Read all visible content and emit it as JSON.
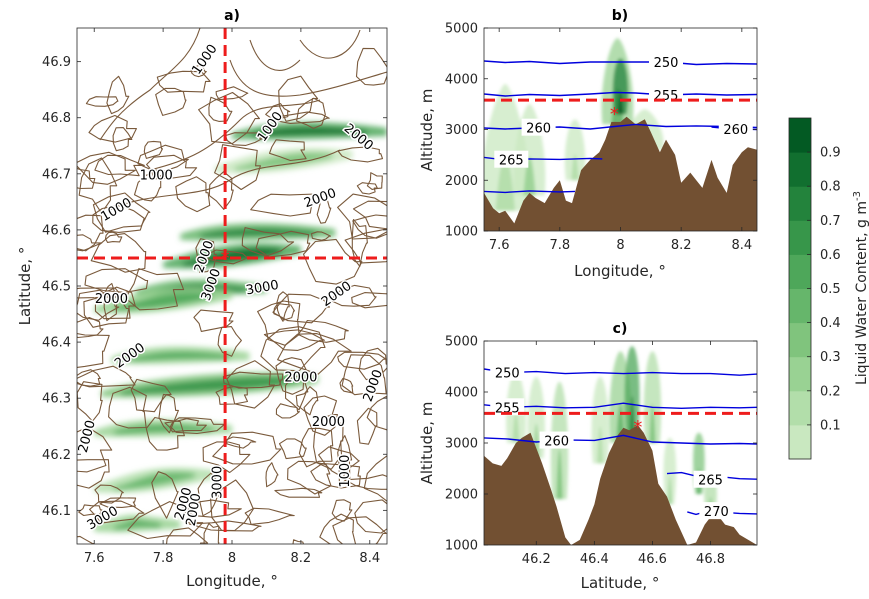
{
  "colors": {
    "terrain_contour": "#7a5a3c",
    "terrain_fill": "#725032",
    "isotherm": "#0000dd",
    "marker_line": "#ee1c1c",
    "green_scale": [
      "#c9e8c0",
      "#b2deaa",
      "#99d293",
      "#80c47d",
      "#66b66b",
      "#4ea75a",
      "#37964a",
      "#23833c",
      "#116f2f",
      "#035a23"
    ]
  },
  "chart_data": [
    {
      "id": "a",
      "type": "contour-map",
      "title": "a)",
      "xlabel": "Longitude, °",
      "ylabel": "Latitude, °",
      "xlim": [
        7.55,
        8.45
      ],
      "ylim": [
        46.04,
        46.96
      ],
      "xticks": [
        7.6,
        7.8,
        8,
        8.2,
        8.4
      ],
      "yticks": [
        46.1,
        46.2,
        46.3,
        46.4,
        46.5,
        46.6,
        46.7,
        46.8,
        46.9
      ],
      "marker_lines": {
        "longitude": 7.98,
        "latitude": 46.55
      },
      "terrain_contour_labels": [
        {
          "text": "1000",
          "x": 7.93,
          "y": 46.9,
          "rot": -55
        },
        {
          "text": "1000",
          "x": 7.78,
          "y": 46.69,
          "rot": 0
        },
        {
          "text": "1000",
          "x": 7.67,
          "y": 46.63,
          "rot": -30
        },
        {
          "text": "1000",
          "x": 8.12,
          "y": 46.78,
          "rot": -55
        },
        {
          "text": "2000",
          "x": 8.36,
          "y": 46.76,
          "rot": 40
        },
        {
          "text": "2000",
          "x": 8.26,
          "y": 46.65,
          "rot": -20
        },
        {
          "text": "2000",
          "x": 7.65,
          "y": 46.47,
          "rot": 0
        },
        {
          "text": "2000",
          "x": 7.71,
          "y": 46.37,
          "rot": -35
        },
        {
          "text": "2000",
          "x": 7.59,
          "y": 46.23,
          "rot": -75
        },
        {
          "text": "2000",
          "x": 8.2,
          "y": 46.33,
          "rot": 0
        },
        {
          "text": "2000",
          "x": 8.28,
          "y": 46.25,
          "rot": 0
        },
        {
          "text": "2000",
          "x": 8.31,
          "y": 46.48,
          "rot": -35
        },
        {
          "text": "2000",
          "x": 8.42,
          "y": 46.32,
          "rot": -70
        },
        {
          "text": "2000",
          "x": 7.87,
          "y": 46.11,
          "rot": -75
        },
        {
          "text": "2000",
          "x": 7.9,
          "y": 46.1,
          "rot": -80
        },
        {
          "text": "2000",
          "x": 7.93,
          "y": 46.55,
          "rot": -70
        },
        {
          "text": "3000",
          "x": 7.95,
          "y": 46.5,
          "rot": -70
        },
        {
          "text": "3000",
          "x": 8.09,
          "y": 46.49,
          "rot": -10
        },
        {
          "text": "3000",
          "x": 7.63,
          "y": 46.08,
          "rot": -30
        },
        {
          "text": "3000",
          "x": 7.97,
          "y": 46.15,
          "rot": -90
        },
        {
          "text": "1000",
          "x": 8.34,
          "y": 46.17,
          "rot": -90
        }
      ],
      "lwc_bands": [
        {
          "lat": 46.78,
          "lon_from": 8.0,
          "lon_to": 8.45,
          "level": 8
        },
        {
          "lat": 46.72,
          "lon_from": 7.95,
          "lon_to": 8.35,
          "level": 3
        },
        {
          "lat": 46.6,
          "lon_from": 7.85,
          "lon_to": 8.3,
          "level": 7
        },
        {
          "lat": 46.55,
          "lon_from": 7.8,
          "lon_to": 8.2,
          "level": 8
        },
        {
          "lat": 46.5,
          "lon_from": 7.72,
          "lon_to": 8.1,
          "level": 7
        },
        {
          "lat": 46.47,
          "lon_from": 7.6,
          "lon_to": 8.0,
          "level": 5
        },
        {
          "lat": 46.38,
          "lon_from": 7.65,
          "lon_to": 8.05,
          "level": 5
        },
        {
          "lat": 46.32,
          "lon_from": 7.62,
          "lon_to": 8.25,
          "level": 6
        },
        {
          "lat": 46.25,
          "lon_from": 7.6,
          "lon_to": 8.0,
          "level": 5
        },
        {
          "lat": 46.15,
          "lon_from": 7.6,
          "lon_to": 7.95,
          "level": 4
        },
        {
          "lat": 46.08,
          "lon_from": 7.6,
          "lon_to": 7.85,
          "level": 5
        }
      ]
    },
    {
      "id": "b",
      "type": "cross-section",
      "title": "b)",
      "xlabel": "Longitude, °",
      "ylabel": "Altitude, m",
      "xlim": [
        7.55,
        8.45
      ],
      "ylim": [
        1000,
        5000
      ],
      "xticks": [
        7.6,
        7.8,
        8,
        8.2,
        8.4
      ],
      "yticks": [
        1000,
        2000,
        3000,
        4000,
        5000
      ],
      "marker_altitude": 3580,
      "star": {
        "x": 7.98,
        "y": 3330
      },
      "terrain": {
        "x": [
          7.55,
          7.58,
          7.6,
          7.62,
          7.65,
          7.68,
          7.7,
          7.72,
          7.75,
          7.78,
          7.8,
          7.82,
          7.84,
          7.87,
          7.9,
          7.93,
          7.95,
          7.97,
          8.0,
          8.02,
          8.05,
          8.08,
          8.1,
          8.13,
          8.15,
          8.18,
          8.2,
          8.23,
          8.25,
          8.27,
          8.3,
          8.32,
          8.35,
          8.37,
          8.4,
          8.42,
          8.45
        ],
        "y": [
          1750,
          1450,
          1350,
          1400,
          1150,
          1600,
          1750,
          1650,
          1550,
          1850,
          2000,
          1600,
          1550,
          2200,
          2400,
          2550,
          2800,
          3150,
          3150,
          3250,
          3100,
          3200,
          2950,
          2550,
          2800,
          2500,
          1950,
          2150,
          2000,
          1850,
          2400,
          2050,
          1750,
          2300,
          2550,
          2650,
          2600
        ]
      },
      "isotherms": [
        {
          "label": "250",
          "x": [
            7.55,
            7.62,
            7.7,
            7.8,
            7.9,
            7.98,
            8.05,
            8.15,
            8.25,
            8.35,
            8.45
          ],
          "y": [
            4350,
            4320,
            4340,
            4300,
            4330,
            4330,
            4330,
            4330,
            4280,
            4300,
            4290
          ],
          "label_x": 8.15
        },
        {
          "label": "255",
          "x": [
            7.55,
            7.62,
            7.7,
            7.8,
            7.9,
            7.98,
            8.05,
            8.15,
            8.25,
            8.35,
            8.45
          ],
          "y": [
            3700,
            3660,
            3690,
            3670,
            3700,
            3730,
            3720,
            3680,
            3700,
            3680,
            3690
          ],
          "label_x": 8.15
        },
        {
          "label": "260",
          "x": [
            7.55,
            7.62,
            7.7,
            7.8,
            7.9,
            7.98,
            8.05,
            8.15,
            8.25,
            8.35,
            8.45
          ],
          "y": [
            3030,
            3010,
            3030,
            3050,
            3010,
            3060,
            3100,
            3060,
            3070,
            3060,
            3040
          ],
          "label_x": 7.73
        },
        {
          "label": "260",
          "x": [
            8.3,
            8.35,
            8.45
          ],
          "y": [
            3050,
            3020,
            3000
          ],
          "label_x": 8.38
        },
        {
          "label": "265",
          "x": [
            7.55,
            7.62,
            7.7,
            7.8,
            7.9,
            7.94
          ],
          "y": [
            2450,
            2400,
            2420,
            2410,
            2430,
            2420
          ],
          "label_x": 7.64
        },
        {
          "label": "",
          "x": [
            7.55,
            7.62,
            7.7,
            7.8,
            7.85
          ],
          "y": [
            1780,
            1760,
            1790,
            1770,
            1780
          ],
          "label_x": 7.7
        }
      ],
      "lwc_columns": [
        {
          "x": 7.62,
          "from": 1400,
          "to": 3900,
          "level": 1,
          "w": 0.16
        },
        {
          "x": 7.7,
          "from": 1700,
          "to": 3500,
          "level": 2,
          "w": 0.1
        },
        {
          "x": 7.85,
          "from": 2000,
          "to": 3200,
          "level": 1,
          "w": 0.06
        },
        {
          "x": 7.99,
          "from": 3100,
          "to": 4800,
          "level": 4,
          "w": 0.1
        },
        {
          "x": 8.0,
          "from": 3300,
          "to": 4400,
          "level": 9,
          "w": 0.04
        },
        {
          "x": 8.08,
          "from": 2600,
          "to": 3400,
          "level": 1,
          "w": 0.12
        }
      ]
    },
    {
      "id": "c",
      "type": "cross-section",
      "title": "c)",
      "xlabel": "Latitude, °",
      "ylabel": "Altitude, m",
      "xlim": [
        46.02,
        46.96
      ],
      "ylim": [
        1000,
        5000
      ],
      "xticks": [
        46.2,
        46.4,
        46.6,
        46.8
      ],
      "yticks": [
        1000,
        2000,
        3000,
        4000,
        5000
      ],
      "marker_altitude": 3580,
      "star": {
        "x": 46.55,
        "y": 3330
      },
      "terrain": {
        "x": [
          46.02,
          46.05,
          46.08,
          46.1,
          46.13,
          46.15,
          46.18,
          46.2,
          46.22,
          46.25,
          46.27,
          46.3,
          46.32,
          46.35,
          46.38,
          46.4,
          46.42,
          46.45,
          46.48,
          46.5,
          46.52,
          46.55,
          46.57,
          46.6,
          46.62,
          46.65,
          46.68,
          46.7,
          46.72,
          46.75,
          46.78,
          46.8,
          46.83,
          46.85,
          46.88,
          46.9,
          46.93,
          46.96
        ],
        "y": [
          2750,
          2600,
          2550,
          2700,
          3000,
          3100,
          3200,
          2900,
          2600,
          2100,
          1750,
          1150,
          1000,
          1100,
          1500,
          1800,
          2300,
          2800,
          3150,
          3300,
          3250,
          3350,
          3200,
          2850,
          2200,
          1950,
          1500,
          1250,
          1000,
          1050,
          1400,
          1550,
          1550,
          1400,
          1350,
          1200,
          1100,
          1000
        ]
      },
      "isotherms": [
        {
          "label": "250",
          "x": [
            46.02,
            46.1,
            46.2,
            46.3,
            46.4,
            46.5,
            46.6,
            46.7,
            46.8,
            46.9,
            46.96
          ],
          "y": [
            4450,
            4380,
            4400,
            4360,
            4380,
            4360,
            4380,
            4360,
            4360,
            4330,
            4350
          ],
          "label_x": 46.1
        },
        {
          "label": "255",
          "x": [
            46.02,
            46.1,
            46.2,
            46.3,
            46.4,
            46.5,
            46.6,
            46.7,
            46.8,
            46.9,
            46.96
          ],
          "y": [
            3750,
            3700,
            3720,
            3690,
            3700,
            3780,
            3700,
            3680,
            3700,
            3690,
            3700
          ],
          "label_x": 46.1
        },
        {
          "label": "260",
          "x": [
            46.02,
            46.1,
            46.2,
            46.3,
            46.4,
            46.5,
            46.6,
            46.7,
            46.8,
            46.9,
            46.96
          ],
          "y": [
            3100,
            3080,
            3020,
            3060,
            3050,
            3150,
            3020,
            3000,
            2980,
            2990,
            2980
          ],
          "label_x": 46.27
        },
        {
          "label": "265",
          "x": [
            46.65,
            46.7,
            46.75,
            46.8,
            46.85,
            46.9,
            46.96
          ],
          "y": [
            2400,
            2420,
            2350,
            2280,
            2330,
            2300,
            2290
          ],
          "label_x": 46.8
        },
        {
          "label": "270",
          "x": [
            46.72,
            46.75,
            46.8,
            46.85,
            46.9,
            46.96
          ],
          "y": [
            1650,
            1600,
            1680,
            1640,
            1620,
            1610
          ],
          "label_x": 46.82
        }
      ],
      "lwc_columns": [
        {
          "x": 46.13,
          "from": 3000,
          "to": 4400,
          "level": 1,
          "w": 0.06
        },
        {
          "x": 46.2,
          "from": 2700,
          "to": 4300,
          "level": 2,
          "w": 0.05
        },
        {
          "x": 46.28,
          "from": 1900,
          "to": 4200,
          "level": 3,
          "w": 0.05
        },
        {
          "x": 46.42,
          "from": 2600,
          "to": 4300,
          "level": 1,
          "w": 0.05
        },
        {
          "x": 46.49,
          "from": 3000,
          "to": 4800,
          "level": 4,
          "w": 0.07
        },
        {
          "x": 46.53,
          "from": 3200,
          "to": 4900,
          "level": 7,
          "w": 0.04
        },
        {
          "x": 46.6,
          "from": 3000,
          "to": 4800,
          "level": 3,
          "w": 0.05
        },
        {
          "x": 46.66,
          "from": 1800,
          "to": 3100,
          "level": 2,
          "w": 0.03
        },
        {
          "x": 46.76,
          "from": 2000,
          "to": 3200,
          "level": 5,
          "w": 0.025
        },
        {
          "x": 46.8,
          "from": 1600,
          "to": 2400,
          "level": 3,
          "w": 0.03
        }
      ]
    }
  ],
  "colorbar": {
    "label": "Liquid Water Content, g m",
    "label_sup": "-3",
    "ticks": [
      "0.1",
      "0.2",
      "0.3",
      "0.4",
      "0.5",
      "0.6",
      "0.7",
      "0.8",
      "0.9"
    ],
    "range": [
      0,
      1
    ]
  }
}
